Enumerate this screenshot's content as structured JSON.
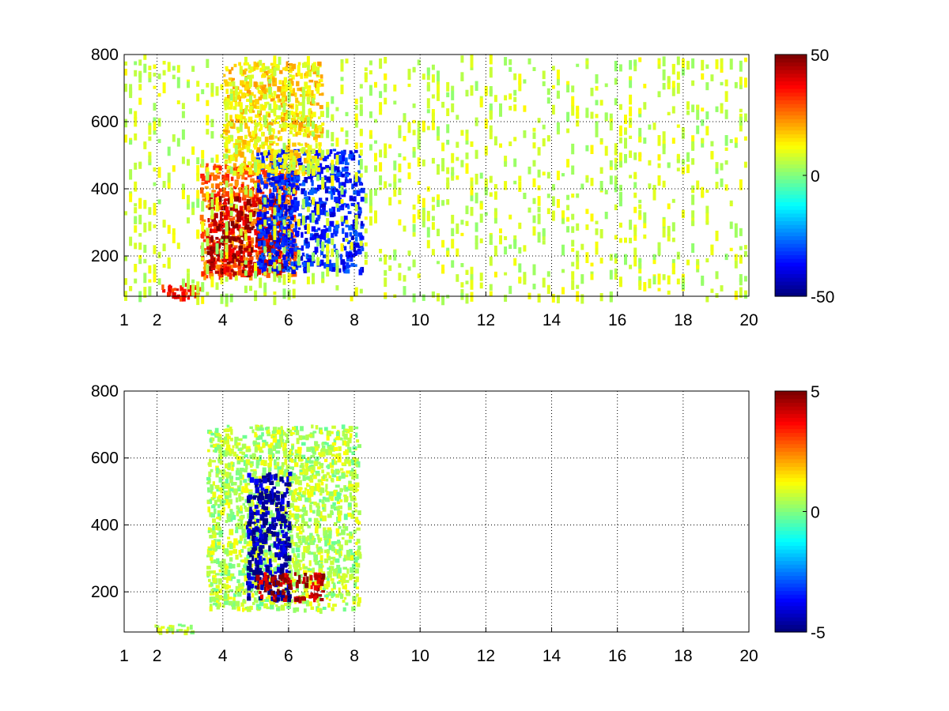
{
  "chart_data": [
    {
      "type": "heatmap",
      "title": "",
      "xlabel": "",
      "ylabel": "",
      "xlim": [
        1,
        20
      ],
      "ylim": [
        80,
        800
      ],
      "xticks": [
        1,
        2,
        4,
        6,
        8,
        10,
        12,
        14,
        16,
        18,
        20
      ],
      "yticks": [
        200,
        400,
        600,
        800
      ],
      "grid": true,
      "colormap": "jet",
      "colorbar": {
        "clim": [
          -50,
          50
        ],
        "ticks": [
          50,
          0,
          -50
        ]
      },
      "regions": [
        {
          "desc": "low-band warm strip",
          "x": [
            2.0,
            3.4
          ],
          "y": [
            80,
            120
          ],
          "value": 35
        },
        {
          "desc": "warm lobe",
          "x": [
            3.3,
            6.2
          ],
          "y": [
            140,
            480
          ],
          "value": 28
        },
        {
          "desc": "strong red core",
          "x": [
            3.5,
            5.8
          ],
          "y": [
            150,
            380
          ],
          "value": 45
        },
        {
          "desc": "cold band",
          "x": [
            5.0,
            8.2
          ],
          "y": [
            160,
            520
          ],
          "value": -35
        },
        {
          "desc": "upper warm haze",
          "x": [
            4.0,
            7.0
          ],
          "y": [
            450,
            780
          ],
          "value": 15
        },
        {
          "desc": "scattered near-zero noise",
          "x": [
            1.0,
            20.0
          ],
          "y": [
            80,
            800
          ],
          "value": 5
        }
      ]
    },
    {
      "type": "heatmap",
      "title": "",
      "xlabel": "",
      "ylabel": "",
      "xlim": [
        1,
        20
      ],
      "ylim": [
        80,
        800
      ],
      "xticks": [
        1,
        2,
        4,
        6,
        8,
        10,
        12,
        14,
        16,
        18,
        20
      ],
      "yticks": [
        200,
        400,
        600,
        800
      ],
      "grid": true,
      "colormap": "jet",
      "colorbar": {
        "clim": [
          -5,
          5
        ],
        "ticks": [
          5,
          0,
          -5
        ]
      },
      "regions": [
        {
          "desc": "low-band strip",
          "x": [
            1.8,
            3.2
          ],
          "y": [
            80,
            105
          ],
          "value": 0.5
        },
        {
          "desc": "main cloud",
          "x": [
            3.5,
            8.1
          ],
          "y": [
            150,
            700
          ],
          "value": 0.5
        },
        {
          "desc": "negative streaks",
          "x": [
            4.7,
            6.0
          ],
          "y": [
            180,
            560
          ],
          "value": -4.5
        },
        {
          "desc": "positive streaks",
          "x": [
            5.0,
            7.0
          ],
          "y": [
            180,
            260
          ],
          "value": 4.5
        }
      ]
    }
  ]
}
